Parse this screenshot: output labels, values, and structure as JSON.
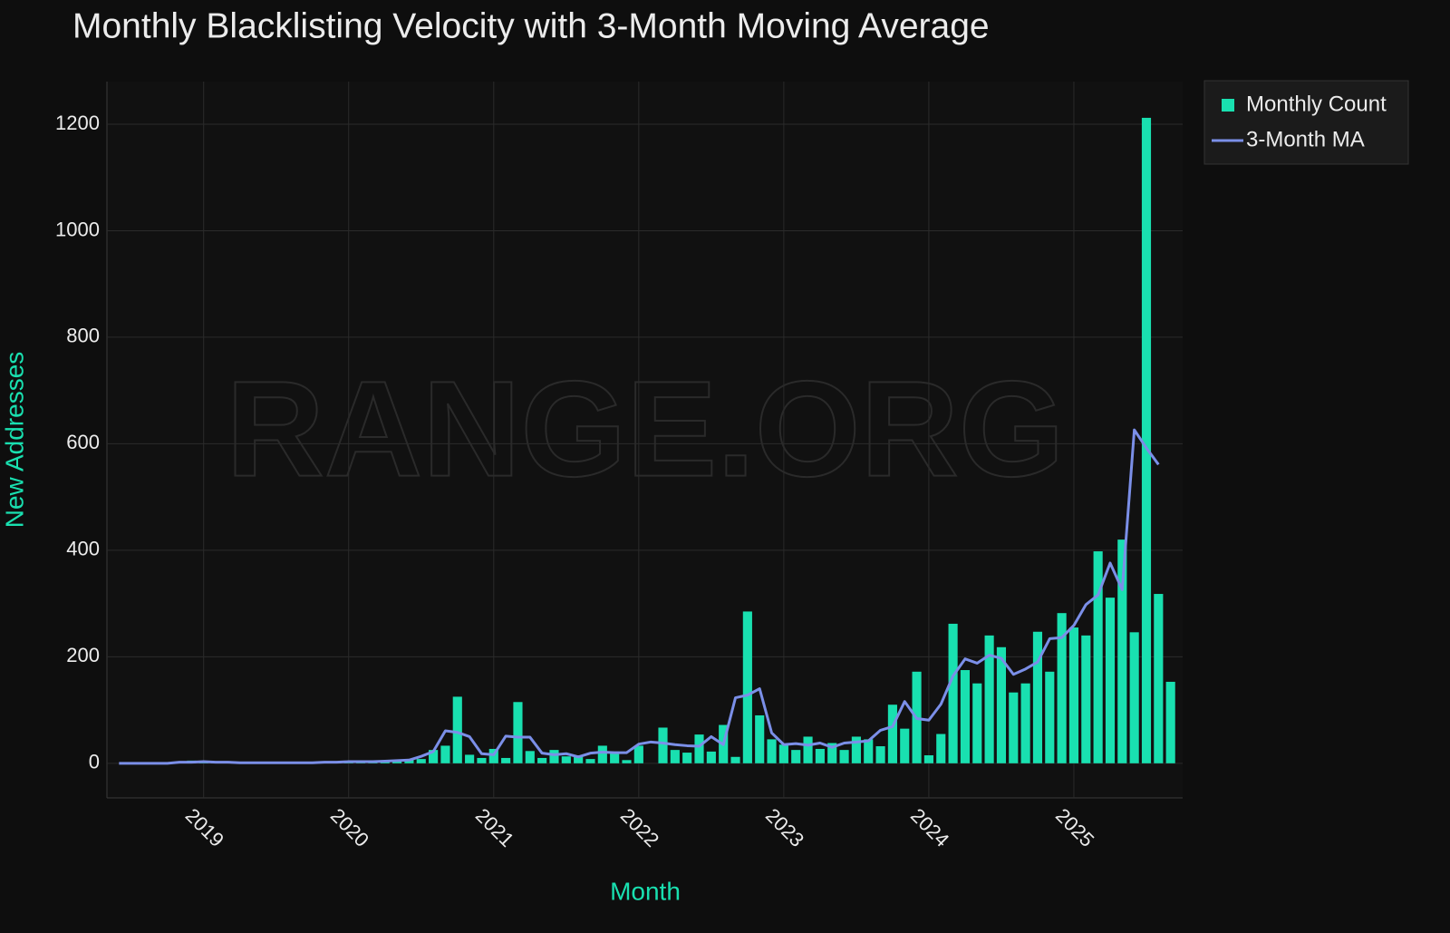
{
  "chart_data": {
    "type": "bar",
    "title": "Monthly Blacklisting Velocity with 3-Month Moving Average",
    "watermark": "RANGE.ORG",
    "x_label": "Month",
    "y_label": "New Addresses",
    "x": [
      "2018-06",
      "2018-07",
      "2018-08",
      "2018-09",
      "2018-10",
      "2018-11",
      "2018-12",
      "2019-01",
      "2019-02",
      "2019-03",
      "2019-04",
      "2019-05",
      "2019-06",
      "2019-07",
      "2019-08",
      "2019-09",
      "2019-10",
      "2019-11",
      "2019-12",
      "2020-01",
      "2020-02",
      "2020-03",
      "2020-04",
      "2020-05",
      "2020-06",
      "2020-07",
      "2020-08",
      "2020-09",
      "2020-10",
      "2020-11",
      "2020-12",
      "2021-01",
      "2021-02",
      "2021-03",
      "2021-04",
      "2021-05",
      "2021-06",
      "2021-07",
      "2021-08",
      "2021-09",
      "2021-10",
      "2021-11",
      "2021-12",
      "2022-01",
      "2022-02",
      "2022-03",
      "2022-04",
      "2022-05",
      "2022-06",
      "2022-07",
      "2022-08",
      "2022-09",
      "2022-10",
      "2022-11",
      "2022-12",
      "2023-01",
      "2023-02",
      "2023-03",
      "2023-04",
      "2023-05",
      "2023-06",
      "2023-07",
      "2023-08",
      "2023-09",
      "2023-10",
      "2023-11",
      "2023-12",
      "2024-01",
      "2024-02",
      "2024-03",
      "2024-04",
      "2024-05",
      "2024-06",
      "2024-07",
      "2024-08",
      "2024-09",
      "2024-10",
      "2024-11",
      "2024-12",
      "2025-01",
      "2025-02",
      "2025-03",
      "2025-04",
      "2025-05",
      "2025-06",
      "2025-07",
      "2025-08",
      "2025-09"
    ],
    "series": [
      {
        "name": "Monthly Count",
        "type": "bar",
        "color": "#19e0b0",
        "values": [
          0,
          0,
          0,
          0,
          0,
          0,
          5,
          3,
          2,
          2,
          1,
          1,
          1,
          1,
          1,
          1,
          1,
          2,
          3,
          3,
          3,
          3,
          4,
          5,
          6,
          8,
          25,
          33,
          125,
          16,
          10,
          27,
          10,
          115,
          23,
          10,
          25,
          13,
          15,
          8,
          33,
          22,
          6,
          33,
          0,
          67,
          25,
          20,
          54,
          22,
          72,
          12,
          285,
          90,
          45,
          35,
          25,
          50,
          27,
          38,
          25,
          50,
          45,
          32,
          110,
          65,
          172,
          15,
          55,
          262,
          175,
          150,
          240,
          218,
          133,
          150,
          247,
          172,
          282,
          255,
          240,
          398,
          311,
          420,
          246,
          1212,
          318,
          153
        ]
      },
      {
        "name": "3-Month MA",
        "type": "line",
        "color": "#7b8fe8",
        "values": [
          0,
          0,
          0,
          0,
          0,
          2,
          2,
          3,
          2,
          2,
          1,
          1,
          1,
          1,
          1,
          1,
          1,
          2,
          2,
          3,
          3,
          3,
          4,
          5,
          6,
          13,
          22,
          61,
          58,
          50,
          18,
          16,
          51,
          49,
          49,
          19,
          16,
          18,
          12,
          19,
          21,
          20,
          20,
          36,
          40,
          38,
          35,
          33,
          32,
          50,
          35,
          123,
          128,
          140,
          57,
          35,
          37,
          34,
          38,
          30,
          38,
          40,
          42,
          62,
          69,
          116,
          84,
          81,
          111,
          164,
          196,
          188,
          203,
          197,
          167,
          177,
          190,
          234,
          236,
          259,
          298,
          316,
          376,
          326,
          626,
          592,
          561,
          null
        ]
      }
    ],
    "xlim": [
      "2018-05",
      "2025-10"
    ],
    "xticks": [
      {
        "value": "2019-01",
        "label": "2019"
      },
      {
        "value": "2020-01",
        "label": "2020"
      },
      {
        "value": "2021-01",
        "label": "2021"
      },
      {
        "value": "2022-01",
        "label": "2022"
      },
      {
        "value": "2023-01",
        "label": "2023"
      },
      {
        "value": "2024-01",
        "label": "2024"
      },
      {
        "value": "2025-01",
        "label": "2025"
      }
    ],
    "ylim": [
      -65,
      1280
    ],
    "yticks": [
      0,
      200,
      400,
      600,
      800,
      1000,
      1200
    ],
    "grid": true,
    "legend": "top-right"
  }
}
